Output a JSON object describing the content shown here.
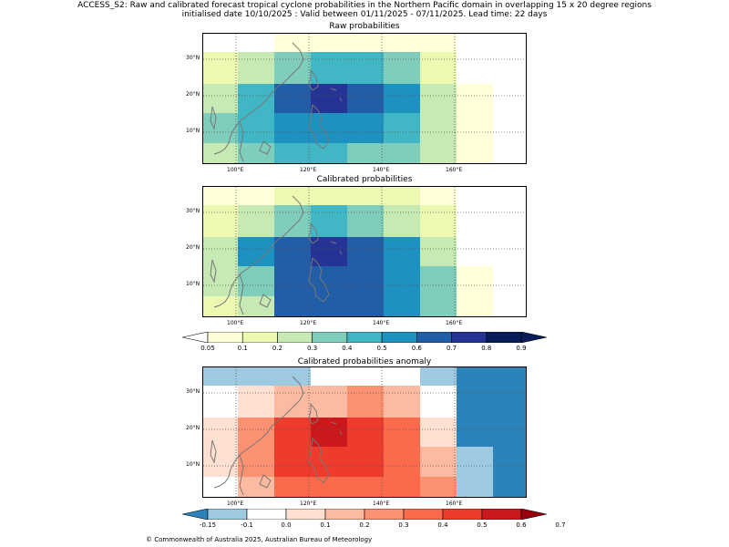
{
  "header": {
    "line1": "ACCESS_S2: Raw and calibrated forecast tropical cyclone probabilities in the Northern Pacific domain in overlapping 15 x 20 degree regions",
    "line2": "initialised date 10/10/2025 :  Valid between 01/11/2025 - 07/11/2025. Lead time: 22 days"
  },
  "axis_ticks": {
    "x": [
      "100°E",
      "120°E",
      "140°E",
      "160°E"
    ],
    "y": [
      "30°N",
      "20°N",
      "10°N"
    ]
  },
  "colors": {
    "prob": [
      "#ffffd9",
      "#edf8b1",
      "#c7e9b4",
      "#7fcdbb",
      "#41b6c4",
      "#1d91c0",
      "#225ea8",
      "#253494",
      "#081d58"
    ],
    "anom": [
      "#2b83ba",
      "#9ecae1",
      "#ffffff",
      "#fee0d2",
      "#fcbba1",
      "#fc9272",
      "#fb6a4a",
      "#ef3b2c",
      "#cb181d",
      "#99000d"
    ]
  },
  "panels": [
    {
      "title": "Raw probabilities",
      "grid": [
        [
          -1,
          -1,
          0,
          0,
          0,
          0,
          0,
          -1,
          -1
        ],
        [
          1,
          2,
          3,
          4,
          4,
          3,
          1,
          -1,
          -1
        ],
        [
          2,
          4,
          6,
          7,
          6,
          5,
          2,
          0,
          -1
        ],
        [
          3,
          4,
          5,
          5,
          5,
          4,
          2,
          0,
          -1
        ],
        [
          2,
          3,
          4,
          4,
          3,
          3,
          2,
          0,
          -1
        ]
      ]
    },
    {
      "title": "Calibrated probabilities",
      "grid": [
        [
          0,
          0,
          1,
          1,
          1,
          1,
          0,
          -1,
          -1
        ],
        [
          1,
          2,
          3,
          4,
          3,
          2,
          1,
          -1,
          -1
        ],
        [
          2,
          5,
          6,
          7,
          6,
          5,
          2,
          -1,
          -1
        ],
        [
          2,
          3,
          6,
          6,
          6,
          5,
          3,
          0,
          -1
        ],
        [
          1,
          2,
          6,
          6,
          6,
          5,
          3,
          0,
          -1
        ]
      ]
    },
    {
      "title": "Calibrated probabilities anomaly",
      "grid": [
        [
          1,
          1,
          1,
          2,
          2,
          2,
          1,
          0,
          0
        ],
        [
          2,
          3,
          4,
          4,
          5,
          4,
          2,
          0,
          0
        ],
        [
          3,
          5,
          7,
          8,
          7,
          6,
          3,
          0,
          0
        ],
        [
          3,
          5,
          7,
          7,
          7,
          6,
          4,
          1,
          0
        ],
        [
          2,
          4,
          6,
          6,
          6,
          6,
          5,
          1,
          0
        ]
      ]
    }
  ],
  "colorbar_prob": {
    "labels": [
      "0.05",
      "0.1",
      "0.2",
      "0.3",
      "0.4",
      "0.5",
      "0.6",
      "0.7",
      "0.8",
      "0.9"
    ]
  },
  "colorbar_anom": {
    "labels": [
      "-0.15",
      "-0.1",
      "0.0",
      "0.1",
      "0.2",
      "0.3",
      "0.4",
      "0.5",
      "0.6",
      "0.7"
    ]
  },
  "footer": "© Commonwealth of Australia 2025, Australian Bureau of Meteorology"
}
